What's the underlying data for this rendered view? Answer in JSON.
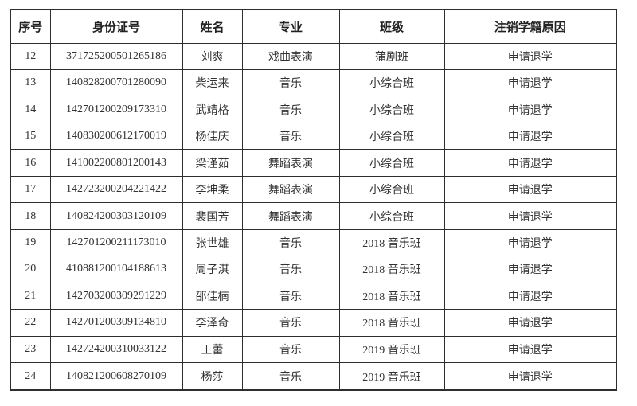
{
  "colors": {
    "background": "#ffffff",
    "border": "#2e2e2e",
    "text": "#333333"
  },
  "table": {
    "headers": [
      "序号",
      "身份证号",
      "姓名",
      "专业",
      "班级",
      "注销学籍原因"
    ],
    "rows": [
      [
        "12",
        "371725200501265186",
        "刘爽",
        "戏曲表演",
        "蒲剧班",
        "申请退学"
      ],
      [
        "13",
        "140828200701280090",
        "柴运来",
        "音乐",
        "小综合班",
        "申请退学"
      ],
      [
        "14",
        "142701200209173310",
        "武靖格",
        "音乐",
        "小综合班",
        "申请退学"
      ],
      [
        "15",
        "140830200612170019",
        "杨佳庆",
        "音乐",
        "小综合班",
        "申请退学"
      ],
      [
        "16",
        "141002200801200143",
        "梁谨茹",
        "舞蹈表演",
        "小综合班",
        "申请退学"
      ],
      [
        "17",
        "142723200204221422",
        "李坤柔",
        "舞蹈表演",
        "小综合班",
        "申请退学"
      ],
      [
        "18",
        "140824200303120109",
        "裴国芳",
        "舞蹈表演",
        "小综合班",
        "申请退学"
      ],
      [
        "19",
        "142701200211173010",
        "张世雄",
        "音乐",
        "2018 音乐班",
        "申请退学"
      ],
      [
        "20",
        "410881200104188613",
        "周子淇",
        "音乐",
        "2018 音乐班",
        "申请退学"
      ],
      [
        "21",
        "142703200309291229",
        "邵佳楠",
        "音乐",
        "2018 音乐班",
        "申请退学"
      ],
      [
        "22",
        "142701200309134810",
        "李泽奇",
        "音乐",
        "2018 音乐班",
        "申请退学"
      ],
      [
        "23",
        "142724200310033122",
        "王蕾",
        "音乐",
        "2019 音乐班",
        "申请退学"
      ],
      [
        "24",
        "140821200608270109",
        "杨莎",
        "音乐",
        "2019 音乐班",
        "申请退学"
      ]
    ]
  }
}
